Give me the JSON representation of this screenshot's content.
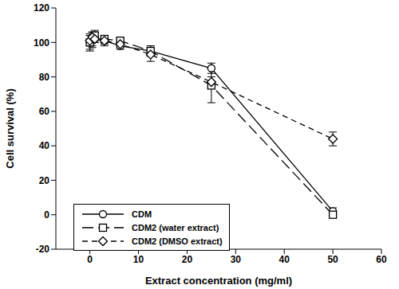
{
  "chart_data": {
    "type": "line",
    "x_label": "Extract concentration (mg/ml)",
    "y_label": "Cell survival (%)",
    "x": [
      0,
      0.5,
      1,
      3,
      6.25,
      12.5,
      25,
      50
    ],
    "xlim": [
      -7,
      60
    ],
    "xticks": [
      0,
      10,
      20,
      30,
      40,
      50,
      60
    ],
    "ylim": [
      -20,
      120
    ],
    "yticks": [
      -20,
      0,
      20,
      40,
      60,
      80,
      100,
      120
    ],
    "grid": false,
    "legend": "lower left",
    "series": [
      {
        "name": "CDM",
        "color": "#000000",
        "marker": "circle",
        "line_style": "solid",
        "values": [
          100,
          101,
          103,
          101,
          98,
          95,
          85,
          2
        ],
        "errors": [
          4,
          4,
          3,
          3,
          2,
          3,
          3,
          2
        ]
      },
      {
        "name": "CDM2 (water extract)",
        "color": "#000000",
        "marker": "square",
        "line_style": "longdash",
        "values": [
          100,
          102,
          104,
          102,
          101,
          95,
          75,
          0
        ],
        "errors": [
          5,
          4,
          3,
          2,
          2,
          3,
          10,
          1
        ]
      },
      {
        "name": "CDM2 (DMSO extract)",
        "color": "#000000",
        "marker": "diamond",
        "line_style": "dashed",
        "values": [
          101,
          103,
          102,
          101,
          99,
          93,
          77,
          44
        ],
        "errors": [
          3,
          3,
          2,
          2,
          2,
          4,
          3,
          4
        ]
      }
    ]
  }
}
